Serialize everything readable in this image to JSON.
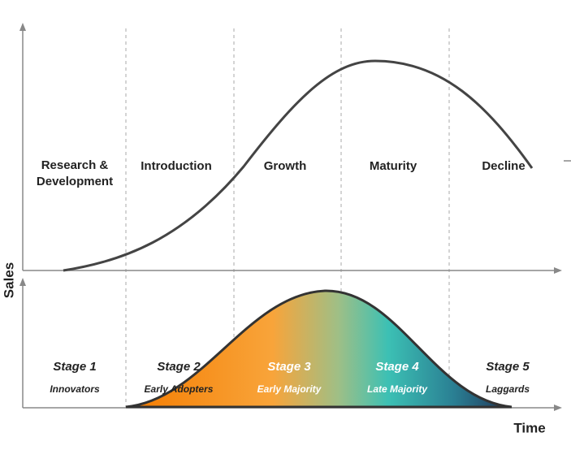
{
  "axes": {
    "y_label": "Sales",
    "x_label": "Time"
  },
  "phases": [
    "Research & Development",
    "Introduction",
    "Growth",
    "Maturity",
    "Decline"
  ],
  "stages": [
    {
      "title": "Stage 1",
      "group": "Innovators"
    },
    {
      "title": "Stage 2",
      "group": "Early Adopters"
    },
    {
      "title": "Stage 3",
      "group": "Early Majority"
    },
    {
      "title": "Stage 4",
      "group": "Late Majority"
    },
    {
      "title": "Stage 5",
      "group": "Laggards"
    }
  ]
}
